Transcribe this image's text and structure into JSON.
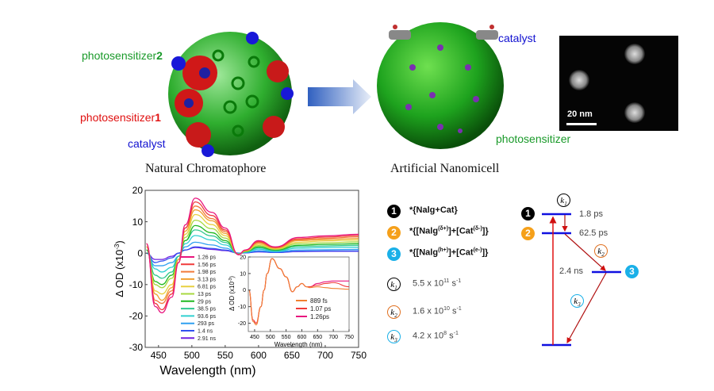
{
  "top": {
    "left_labels": {
      "ps2": "photosensitizer",
      "ps2_num": "2",
      "ps1": "photosensitizer",
      "ps1_num": "1",
      "catalyst": "catalyst"
    },
    "left_caption": "Natural Chromatophore",
    "right_labels": {
      "catalyst": "catalyst",
      "photosensitizer": "photosensitizer"
    },
    "right_caption": "Artificial Nanomicell",
    "scale_bar": "20 nm",
    "colors": {
      "green": "#1a9a2a",
      "red": "#e01010",
      "blue": "#1010d0"
    }
  },
  "chart_data": [
    {
      "type": "line",
      "xlabel": "Wavelength (nm)",
      "ylabel": "Δ OD (x10",
      "ylabel_sup": "-3",
      "ylabel_end": ")",
      "xlim": [
        430,
        750
      ],
      "ylim": [
        -30,
        20
      ],
      "xticks": [
        "450",
        "500",
        "550",
        "600",
        "650",
        "700",
        "750"
      ],
      "yticks": [
        "20",
        "10",
        "0",
        "-10",
        "-20",
        "-30"
      ],
      "grid": false,
      "legend": "center-left",
      "x": [
        432,
        445,
        455,
        470,
        480,
        490,
        505,
        530,
        550,
        570,
        580,
        600,
        625,
        660,
        700,
        750
      ],
      "series": [
        {
          "name": "1.26 ps",
          "color": "#e8157e",
          "values": [
            3,
            -17,
            -19,
            -14,
            -3,
            9,
            17.5,
            13,
            8,
            -0.5,
            1,
            4,
            2,
            5,
            5.5,
            6
          ]
        },
        {
          "name": "1.56 ps",
          "color": "#f03a3a",
          "values": [
            3,
            -16,
            -18,
            -13,
            -3,
            8,
            16.3,
            12,
            7.4,
            -0.5,
            1,
            3.7,
            1.9,
            4.6,
            5.1,
            5.6
          ]
        },
        {
          "name": "1.98 ps",
          "color": "#f27a3a",
          "values": [
            3,
            -15,
            -16,
            -12,
            -3,
            8,
            15,
            11,
            6.9,
            -0.4,
            0.9,
            3.4,
            1.7,
            4.3,
            4.7,
            5.2
          ]
        },
        {
          "name": "3.13 ps",
          "color": "#f0a030",
          "values": [
            2,
            -13,
            -15,
            -11,
            -2,
            7,
            13.8,
            10.3,
            6.3,
            -0.4,
            0.8,
            3.2,
            1.6,
            4,
            4.3,
            4.7
          ]
        },
        {
          "name": "6.81 ps",
          "color": "#e8d040",
          "values": [
            2,
            -12,
            -13,
            -10,
            -2,
            6,
            12.3,
            9.1,
            5.6,
            -0.4,
            0.7,
            2.8,
            1.4,
            3.5,
            3.9,
            4.2
          ]
        },
        {
          "name": "13 ps",
          "color": "#a8d840",
          "values": [
            2,
            -10,
            -11,
            -8,
            -2,
            5,
            10.5,
            7.8,
            4.8,
            -0.3,
            0.6,
            2.4,
            1.2,
            3,
            3.3,
            3.6
          ]
        },
        {
          "name": "29 ps",
          "color": "#20b820",
          "values": [
            1,
            -9,
            -10,
            -7,
            -2,
            4,
            8.8,
            6.5,
            4,
            -0.3,
            0.5,
            2,
            1,
            2.5,
            2.8,
            3
          ]
        },
        {
          "name": "38.5 ps",
          "color": "#30c890",
          "values": [
            1,
            -7,
            -8,
            -6,
            -1,
            4,
            7.4,
            5.5,
            3.4,
            -0.2,
            0.4,
            1.7,
            0.8,
            2.1,
            2.3,
            2.5
          ]
        },
        {
          "name": "93.6 ps",
          "color": "#30d0d0",
          "values": [
            1,
            -5,
            -6,
            -4.5,
            -1,
            3,
            5.6,
            4.2,
            2.6,
            -0.2,
            0.3,
            1.3,
            0.6,
            1.6,
            1.8,
            1.9
          ]
        },
        {
          "name": "293 ps",
          "color": "#30a0f0",
          "values": [
            0,
            -4,
            -4,
            -3,
            -1,
            2,
            3.5,
            2.6,
            1.6,
            -0.1,
            0.2,
            0.8,
            0.4,
            1,
            1.1,
            1.2
          ]
        },
        {
          "name": "1.4 ns",
          "color": "#3050f0",
          "values": [
            0,
            -3,
            -2.5,
            -1.5,
            0,
            1,
            2,
            1.5,
            1,
            0,
            0.1,
            0.5,
            0.2,
            0.6,
            0.7,
            0.7
          ]
        },
        {
          "name": "2.91 ns",
          "color": "#7020e0",
          "values": [
            0,
            -2,
            -2,
            -1,
            0,
            1,
            1.8,
            1.2,
            0.8,
            0,
            0.1,
            0.4,
            0.2,
            0.5,
            0.6,
            0.6
          ]
        }
      ]
    },
    {
      "type": "line",
      "xlabel": "Wavelength (nm)",
      "ylabel": "Δ OD (x10",
      "ylabel_sup": "-3",
      "ylabel_end": ")",
      "xlim": [
        430,
        750
      ],
      "ylim": [
        -25,
        20
      ],
      "xticks": [
        "450",
        "500",
        "550",
        "600",
        "650",
        "700",
        "750"
      ],
      "yticks": [
        "20",
        "10",
        "0",
        "-10",
        "-20"
      ],
      "grid": false,
      "legend": "bottom-right",
      "x": [
        432,
        445,
        455,
        470,
        480,
        490,
        505,
        530,
        550,
        570,
        585,
        600,
        615,
        625,
        650,
        675,
        700,
        750
      ],
      "series": [
        {
          "name": "889 fs",
          "color": "#f08030",
          "values": [
            0,
            -19,
            -21,
            -10,
            0,
            10,
            19,
            13,
            8,
            -1,
            2,
            4,
            2,
            1.5,
            2,
            1.5,
            1,
            0.5
          ]
        },
        {
          "name": "1.07 ps",
          "color": "#f03a3a",
          "values": [
            0,
            -18,
            -20,
            -10,
            0,
            10,
            19,
            13,
            8,
            -1,
            2,
            4,
            2,
            2,
            3,
            4,
            4.5,
            2
          ]
        },
        {
          "name": "1.26ps",
          "color": "#e8157e",
          "values": [
            0,
            -18,
            -20,
            -10,
            0,
            10,
            19,
            13,
            8,
            -1,
            2,
            4,
            2,
            2,
            4,
            5,
            5.5,
            5.5
          ]
        }
      ]
    }
  ],
  "states": [
    {
      "num": "1",
      "color": "#000000",
      "pre": "*{Nalg+Cat}",
      "a_sup": "",
      "mid": "",
      "b_sup": "",
      "post": ""
    },
    {
      "num": "2",
      "color": "#f5a01a",
      "pre": "*{[Nalg",
      "a_sup": "(δ+)",
      "mid": "]+[Cat",
      "b_sup": "(δ-)",
      "post": "]}"
    },
    {
      "num": "3",
      "color": "#1ab0e8",
      "pre": "*{[Nalg",
      "a_sup": "(h+)",
      "mid": "]+[Cat",
      "b_sup": "(e-)",
      "post": "]}"
    }
  ],
  "rates": [
    {
      "k": "k",
      "sub": "1",
      "color": "#000000",
      "mant": "5.5 x 10",
      "exp": "11",
      "unit": " s",
      "unit_exp": "-1"
    },
    {
      "k": "k",
      "sub": "2",
      "color": "#e07020",
      "mant": "1.6 x 10",
      "exp": "10",
      "unit": " s",
      "unit_exp": "-1"
    },
    {
      "k": "k",
      "sub": "3",
      "color": "#1ab0e8",
      "mant": "4.2 x 10",
      "exp": "8",
      "unit": " s",
      "unit_exp": "-1"
    }
  ],
  "energy_diagram": {
    "level1_lifetime": "1.8 ps",
    "level2_lifetime": "62.5 ps",
    "level3_lifetime": "2.4 ns",
    "level_color": "#1010e0",
    "arrow_color": "#d01010"
  }
}
